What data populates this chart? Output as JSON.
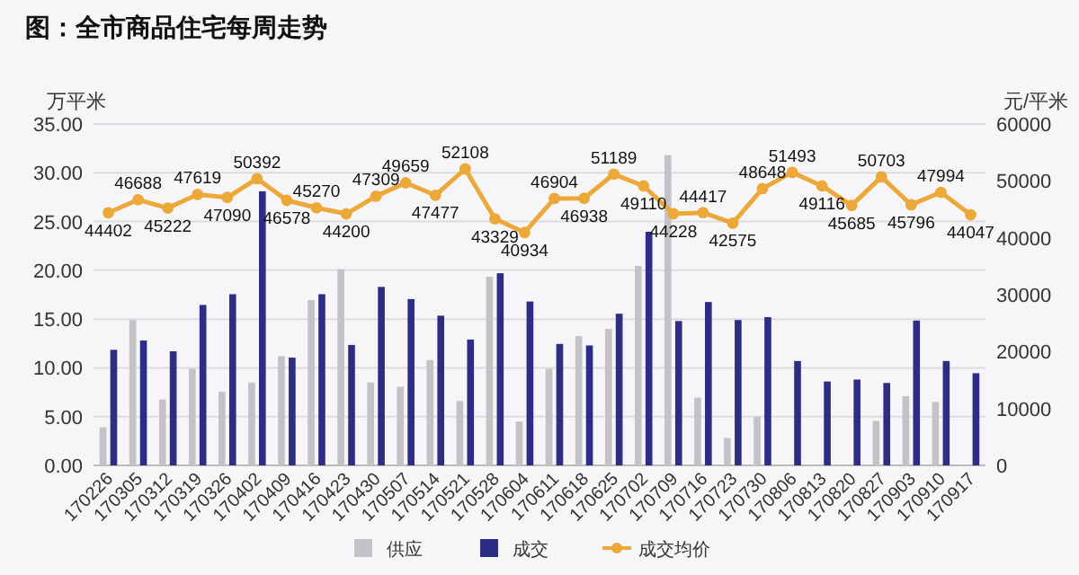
{
  "chart_data": {
    "type": "bar",
    "title": "图：全市商品住宅每周走势",
    "ylabel": "万平米",
    "y2label": "元/平米",
    "categories": [
      "170226",
      "170305",
      "170312",
      "170319",
      "170326",
      "170402",
      "170409",
      "170416",
      "170423",
      "170430",
      "170507",
      "170514",
      "170521",
      "170528",
      "170604",
      "170611",
      "170618",
      "170625",
      "170702",
      "170709",
      "170716",
      "170723",
      "170730",
      "170806",
      "170813",
      "170820",
      "170827",
      "170903",
      "170910",
      "170917"
    ],
    "series": [
      {
        "name": "供应",
        "color": "#c3c3c7",
        "values": [
          3.9,
          14.9,
          6.75,
          9.9,
          7.55,
          8.5,
          11.2,
          16.95,
          20.1,
          8.5,
          8.05,
          10.8,
          6.6,
          19.35,
          4.5,
          9.9,
          13.25,
          14.0,
          20.45,
          31.8,
          6.95,
          2.8,
          5.0,
          null,
          null,
          null,
          4.55,
          7.1,
          6.5,
          null
        ]
      },
      {
        "name": "成交",
        "color": "#2e2d84",
        "values": [
          11.85,
          12.8,
          11.7,
          16.45,
          17.55,
          28.1,
          11.05,
          17.55,
          12.35,
          18.3,
          17.05,
          15.35,
          12.9,
          19.7,
          16.8,
          12.45,
          12.3,
          15.55,
          23.95,
          14.8,
          16.75,
          14.9,
          15.2,
          10.7,
          8.6,
          8.8,
          8.45,
          14.85,
          10.7,
          9.45
        ]
      },
      {
        "name": "成交均价",
        "type": "line",
        "axis": "y2",
        "color": "#eda83a",
        "marker": "circle",
        "values": [
          44402,
          46688,
          45222,
          47619,
          47090,
          50392,
          46578,
          45270,
          44200,
          47309,
          49659,
          47477,
          52108,
          43329,
          40934,
          46904,
          46938,
          51189,
          49110,
          44228,
          44417,
          42575,
          48648,
          51493,
          49116,
          45685,
          50703,
          45796,
          47994,
          44047
        ],
        "value_labels": [
          "44402",
          "46688",
          "45222",
          "47619",
          "47090",
          "50392",
          "46578",
          "45270",
          "44200",
          "47309",
          "49659",
          "47477",
          "52108",
          "43329",
          "40934",
          "46904",
          "46938",
          "51189",
          "49110",
          "44228",
          "44417",
          "42575",
          "48648",
          "51493",
          "49116",
          "45685",
          "50703",
          "45796",
          "47994",
          "44047"
        ]
      }
    ],
    "ylim": [
      0,
      35
    ],
    "yticks": [
      {
        "value": 0,
        "label": "0.00"
      },
      {
        "value": 5,
        "label": "5.00"
      },
      {
        "value": 10,
        "label": "10.00"
      },
      {
        "value": 15,
        "label": "15.00"
      },
      {
        "value": 20,
        "label": "20.00"
      },
      {
        "value": 25,
        "label": "25.00"
      },
      {
        "value": 30,
        "label": "30.00"
      },
      {
        "value": 35,
        "label": "35.00"
      }
    ],
    "y2lim": [
      0,
      60000
    ],
    "y2ticks": [
      0,
      10000,
      20000,
      30000,
      40000,
      50000,
      60000
    ],
    "grid": "y",
    "legend": "bottom"
  }
}
